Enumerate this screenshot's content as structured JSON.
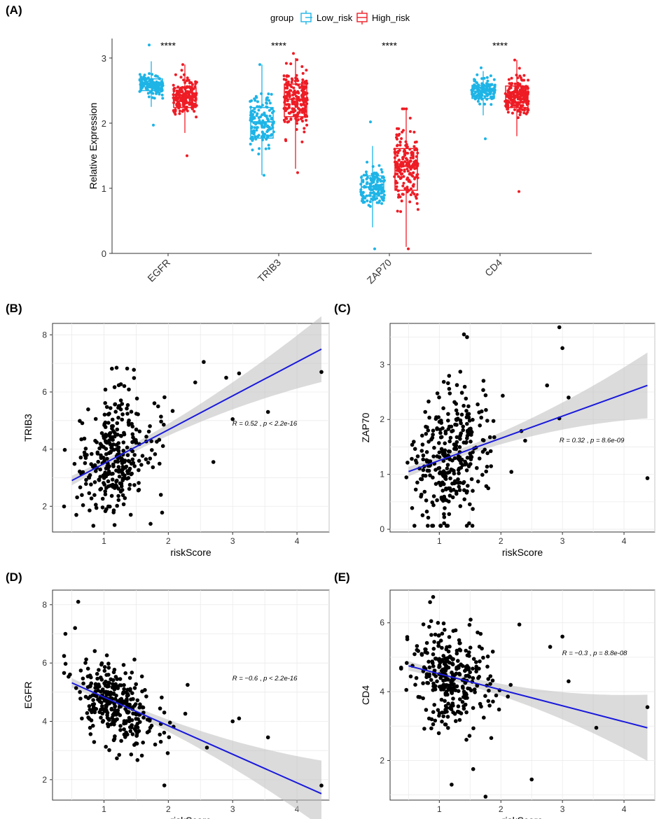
{
  "chart_data": [
    {
      "panel": "(A)",
      "type": "box",
      "ylabel": "Relative Expression",
      "ylim": [
        0,
        3.3
      ],
      "yticks": [
        0,
        1,
        2,
        3
      ],
      "categories": [
        "EGFR",
        "TRIB3",
        "ZAP70",
        "CD4"
      ],
      "significance": [
        "****",
        "****",
        "****",
        "****"
      ],
      "legend": {
        "title": "group",
        "entries": [
          "Low_risk",
          "High_risk"
        ],
        "placement": "top"
      },
      "colors": {
        "Low_risk": "#1eb4e6",
        "High_risk": "#ee1c25"
      },
      "series": [
        {
          "name": "Low_risk",
          "boxes": [
            {
              "q1": 2.5,
              "median": 2.59,
              "q3": 2.68,
              "low": 2.25,
              "high": 2.95,
              "min": 1.97,
              "max": 3.2
            },
            {
              "q1": 1.77,
              "median": 2.02,
              "q3": 2.24,
              "low": 1.2,
              "high": 2.9,
              "min": 1.2,
              "max": 2.9
            },
            {
              "q1": 0.88,
              "median": 1.02,
              "q3": 1.19,
              "low": 0.4,
              "high": 1.65,
              "min": 0.07,
              "max": 2.02
            },
            {
              "q1": 2.38,
              "median": 2.49,
              "q3": 2.58,
              "low": 2.12,
              "high": 2.8,
              "min": 1.76,
              "max": 2.85
            }
          ]
        },
        {
          "name": "High_risk",
          "boxes": [
            {
              "q1": 2.24,
              "median": 2.4,
              "q3": 2.54,
              "low": 1.85,
              "high": 2.9,
              "min": 1.5,
              "max": 2.9
            },
            {
              "q1": 2.1,
              "median": 2.37,
              "q3": 2.6,
              "low": 1.3,
              "high": 3.0,
              "min": 1.24,
              "max": 3.07
            },
            {
              "q1": 0.97,
              "median": 1.34,
              "q3": 1.61,
              "low": 0.1,
              "high": 2.2,
              "min": 0.07,
              "max": 2.22
            },
            {
              "q1": 2.24,
              "median": 2.41,
              "q3": 2.57,
              "low": 1.8,
              "high": 2.97,
              "min": 0.95,
              "max": 2.97
            }
          ]
        }
      ]
    },
    {
      "panel": "(B)",
      "type": "scatter",
      "xlabel": "riskScore",
      "ylabel": "TRIB3",
      "xlim": [
        0.2,
        4.5
      ],
      "ylim": [
        1.1,
        8.4
      ],
      "xticks": [
        1,
        2,
        3,
        4
      ],
      "yticks": [
        2,
        4,
        6,
        8
      ],
      "annotation": {
        "r": "R = 0.52",
        "p": "p < 2.2e-16"
      },
      "fit": {
        "x": [
          0.5,
          4.38
        ],
        "y": [
          2.9,
          7.5
        ]
      },
      "center": {
        "x": 1.0,
        "y": 3.5
      },
      "spread": {
        "x": 0.4,
        "y": 1.25
      },
      "extra_points": {
        "x": [
          2.7,
          3.0,
          3.55,
          4.38,
          2.55,
          2.9,
          3.1
        ],
        "y": [
          3.55,
          5.05,
          5.3,
          6.7,
          7.05,
          6.5,
          6.65
        ]
      }
    },
    {
      "panel": "(C)",
      "type": "scatter",
      "xlabel": "riskScore",
      "ylabel": "ZAP70",
      "xlim": [
        0.2,
        4.5
      ],
      "ylim": [
        -0.05,
        3.75
      ],
      "xticks": [
        1,
        2,
        3,
        4
      ],
      "yticks": [
        0,
        1,
        2,
        3
      ],
      "annotation": {
        "r": "R = 0.32",
        "p": "p = 8.6e-09"
      },
      "fit": {
        "x": [
          0.5,
          4.38
        ],
        "y": [
          1.05,
          2.62
        ]
      },
      "center": {
        "x": 1.0,
        "y": 1.3
      },
      "spread": {
        "x": 0.4,
        "y": 0.7
      },
      "extra_points": {
        "x": [
          2.95,
          3.0,
          2.95,
          3.1,
          2.75,
          4.38,
          1.4,
          1.45
        ],
        "y": [
          3.68,
          3.3,
          2.02,
          2.4,
          2.62,
          0.93,
          3.55,
          3.5
        ]
      }
    },
    {
      "panel": "(D)",
      "type": "scatter",
      "xlabel": "riskScore",
      "ylabel": "EGFR",
      "xlim": [
        0.2,
        4.5
      ],
      "ylim": [
        1.3,
        8.5
      ],
      "xticks": [
        1,
        2,
        3,
        4
      ],
      "yticks": [
        2,
        4,
        6,
        8
      ],
      "annotation": {
        "r": "R = −0.6",
        "p": "p < 2.2e-16"
      },
      "fit": {
        "x": [
          0.5,
          4.38
        ],
        "y": [
          5.32,
          1.52
        ]
      },
      "center": {
        "x": 1.0,
        "y": 4.7
      },
      "spread": {
        "x": 0.4,
        "y": 0.75
      },
      "extra_points": {
        "x": [
          0.6,
          0.55,
          0.4,
          3.0,
          3.1,
          3.55,
          2.3,
          2.6,
          4.38
        ],
        "y": [
          8.1,
          7.2,
          7.0,
          4.0,
          4.1,
          3.45,
          5.25,
          3.1,
          1.8
        ]
      }
    },
    {
      "panel": "(E)",
      "type": "scatter",
      "xlabel": "riskScore",
      "ylabel": "CD4",
      "xlim": [
        0.2,
        4.5
      ],
      "ylim": [
        0.85,
        6.95
      ],
      "xticks": [
        1,
        2,
        3,
        4
      ],
      "yticks": [
        2,
        4,
        6
      ],
      "annotation": {
        "r": "R = −0.3",
        "p": "p = 8.8e-08"
      },
      "fit": {
        "x": [
          0.5,
          4.38
        ],
        "y": [
          4.75,
          2.95
        ]
      },
      "center": {
        "x": 1.0,
        "y": 4.4
      },
      "spread": {
        "x": 0.4,
        "y": 0.8
      },
      "extra_points": {
        "x": [
          0.9,
          0.85,
          1.75,
          2.3,
          2.8,
          3.0,
          3.1,
          4.38,
          3.55,
          2.5,
          1.55,
          1.2
        ],
        "y": [
          6.75,
          6.6,
          0.95,
          5.95,
          5.3,
          5.6,
          4.3,
          3.55,
          2.95,
          1.45,
          1.75,
          1.3
        ]
      }
    }
  ]
}
